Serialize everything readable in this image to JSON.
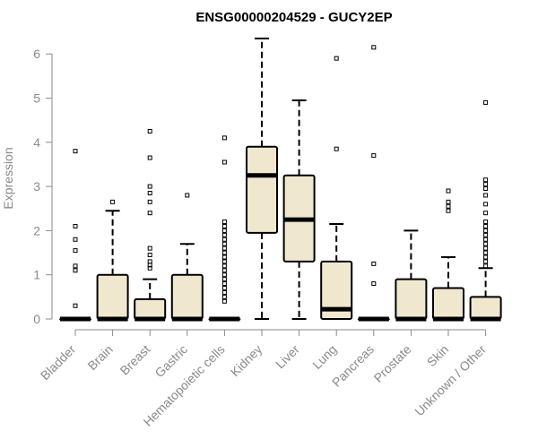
{
  "chart_data": {
    "type": "boxplot",
    "title": "ENSG00000204529 - GUCY2EP",
    "xlabel": "",
    "ylabel": "Expression",
    "ylim": [
      0,
      6.5
    ],
    "yticks": [
      0,
      1,
      2,
      3,
      4,
      5,
      6
    ],
    "grid": false,
    "box_fill": "#efe8cf",
    "box_stroke": "#000000",
    "categories": [
      "Bladder",
      "Brain",
      "Breast",
      "Gastric",
      "Hematopoietic cells",
      "Kidney",
      "Liver",
      "Lung",
      "Pancreas",
      "Prostate",
      "Skin",
      "Unknown / Other"
    ],
    "boxes": [
      {
        "q1": 0,
        "median": 0,
        "q3": 0,
        "whisker_low": 0,
        "whisker_high": 0,
        "outliers": [
          0.3,
          1.1,
          1.2,
          1.55,
          1.8,
          2.1,
          3.8
        ]
      },
      {
        "q1": 0,
        "median": 0,
        "q3": 1.0,
        "whisker_low": 0,
        "whisker_high": 2.45,
        "outliers": [
          2.65
        ]
      },
      {
        "q1": 0,
        "median": 0,
        "q3": 0.45,
        "whisker_low": 0,
        "whisker_high": 0.9,
        "outliers": [
          1.15,
          1.22,
          1.3,
          1.45,
          1.6,
          2.4,
          2.65,
          2.85,
          3.0,
          3.65,
          4.25
        ]
      },
      {
        "q1": 0,
        "median": 0,
        "q3": 1.0,
        "whisker_low": 0,
        "whisker_high": 1.7,
        "outliers": [
          2.8
        ]
      },
      {
        "q1": 0,
        "median": 0,
        "q3": 0,
        "whisker_low": 0,
        "whisker_high": 0,
        "outliers": [
          0.4,
          0.5,
          0.6,
          0.7,
          0.8,
          0.9,
          1.0,
          1.1,
          1.2,
          1.3,
          1.4,
          1.5,
          1.6,
          1.7,
          1.8,
          1.9,
          2.0,
          2.1,
          2.2,
          3.55,
          4.1
        ]
      },
      {
        "q1": 1.95,
        "median": 3.25,
        "q3": 3.9,
        "whisker_low": 0,
        "whisker_high": 6.35,
        "outliers": []
      },
      {
        "q1": 1.3,
        "median": 2.25,
        "q3": 3.25,
        "whisker_low": 0,
        "whisker_high": 4.95,
        "outliers": []
      },
      {
        "q1": 0,
        "median": 0.22,
        "q3": 1.3,
        "whisker_low": 0,
        "whisker_high": 2.15,
        "outliers": [
          3.85,
          5.9
        ]
      },
      {
        "q1": 0,
        "median": 0,
        "q3": 0,
        "whisker_low": 0,
        "whisker_high": 0,
        "outliers": [
          0.8,
          1.25,
          3.7,
          6.15
        ]
      },
      {
        "q1": 0,
        "median": 0,
        "q3": 0.9,
        "whisker_low": 0,
        "whisker_high": 2.0,
        "outliers": []
      },
      {
        "q1": 0,
        "median": 0,
        "q3": 0.7,
        "whisker_low": 0,
        "whisker_high": 1.4,
        "outliers": [
          2.45,
          2.55,
          2.65,
          2.9
        ]
      },
      {
        "q1": 0,
        "median": 0,
        "q3": 0.5,
        "whisker_low": 0,
        "whisker_high": 1.15,
        "outliers": [
          1.2,
          1.3,
          1.4,
          1.5,
          1.6,
          1.7,
          1.8,
          1.9,
          2.0,
          2.1,
          2.2,
          2.4,
          2.6,
          2.8,
          2.95,
          3.05,
          3.15,
          4.9
        ]
      }
    ]
  }
}
